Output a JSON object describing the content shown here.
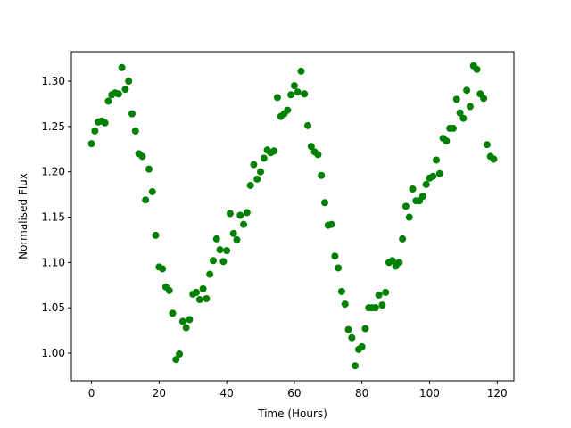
{
  "chart_data": {
    "type": "scatter",
    "xlabel": "Time (Hours)",
    "ylabel": "Normalised Flux",
    "color": "#008000",
    "xlim": [
      -5.95,
      124.95
    ],
    "ylim": [
      0.9695,
      1.3325
    ],
    "xticks": [
      0,
      20,
      40,
      60,
      80,
      100,
      120
    ],
    "yticks": [
      {
        "value": 1.0,
        "label": "1.00"
      },
      {
        "value": 1.05,
        "label": "1.05"
      },
      {
        "value": 1.1,
        "label": "1.10"
      },
      {
        "value": 1.15,
        "label": "1.15"
      },
      {
        "value": 1.2,
        "label": "1.20"
      },
      {
        "value": 1.25,
        "label": "1.25"
      },
      {
        "value": 1.3,
        "label": "1.30"
      }
    ],
    "x": [
      0,
      1,
      2,
      3,
      4,
      5,
      6,
      7,
      8,
      9,
      10,
      11,
      12,
      13,
      14,
      15,
      16,
      17,
      18,
      19,
      20,
      21,
      22,
      23,
      24,
      25,
      26,
      27,
      28,
      29,
      30,
      31,
      32,
      33,
      34,
      35,
      36,
      37,
      38,
      39,
      40,
      41,
      42,
      43,
      44,
      45,
      46,
      47,
      48,
      49,
      50,
      51,
      52,
      53,
      54,
      55,
      56,
      57,
      58,
      59,
      60,
      61,
      62,
      63,
      64,
      65,
      66,
      67,
      68,
      69,
      70,
      71,
      72,
      73,
      74,
      75,
      76,
      77,
      78,
      79,
      80,
      81,
      82,
      83,
      84,
      85,
      86,
      87,
      88,
      89,
      90,
      91,
      92,
      93,
      94,
      95,
      96,
      97,
      98,
      99,
      100,
      101,
      102,
      103,
      104,
      105,
      106,
      107,
      108,
      109,
      110,
      111,
      112,
      113,
      114,
      115,
      116,
      117,
      118,
      119
    ],
    "values": [
      1.231,
      1.245,
      1.255,
      1.256,
      1.254,
      1.278,
      1.285,
      1.287,
      1.286,
      1.315,
      1.291,
      1.3,
      1.264,
      1.245,
      1.22,
      1.217,
      1.169,
      1.203,
      1.178,
      1.13,
      1.095,
      1.093,
      1.073,
      1.069,
      1.044,
      0.993,
      0.999,
      1.035,
      1.028,
      1.037,
      1.065,
      1.067,
      1.059,
      1.071,
      1.06,
      1.087,
      1.102,
      1.126,
      1.114,
      1.101,
      1.113,
      1.154,
      1.132,
      1.125,
      1.152,
      1.142,
      1.155,
      1.185,
      1.208,
      1.192,
      1.2,
      1.215,
      1.224,
      1.221,
      1.223,
      1.282,
      1.261,
      1.264,
      1.268,
      1.285,
      1.295,
      1.288,
      1.311,
      1.286,
      1.251,
      1.228,
      1.222,
      1.219,
      1.196,
      1.166,
      1.141,
      1.142,
      1.107,
      1.094,
      1.068,
      1.054,
      1.026,
      1.017,
      0.986,
      1.004,
      1.007,
      1.027,
      1.05,
      1.05,
      1.05,
      1.064,
      1.053,
      1.067,
      1.1,
      1.102,
      1.096,
      1.1,
      1.126,
      1.162,
      1.15,
      1.181,
      1.168,
      1.168,
      1.173,
      1.186,
      1.193,
      1.195,
      1.213,
      1.198,
      1.237,
      1.234,
      1.248,
      1.248,
      1.28,
      1.265,
      1.259,
      1.29,
      1.272,
      1.317,
      1.313,
      1.286,
      1.281,
      1.23,
      1.217,
      1.214
    ]
  }
}
